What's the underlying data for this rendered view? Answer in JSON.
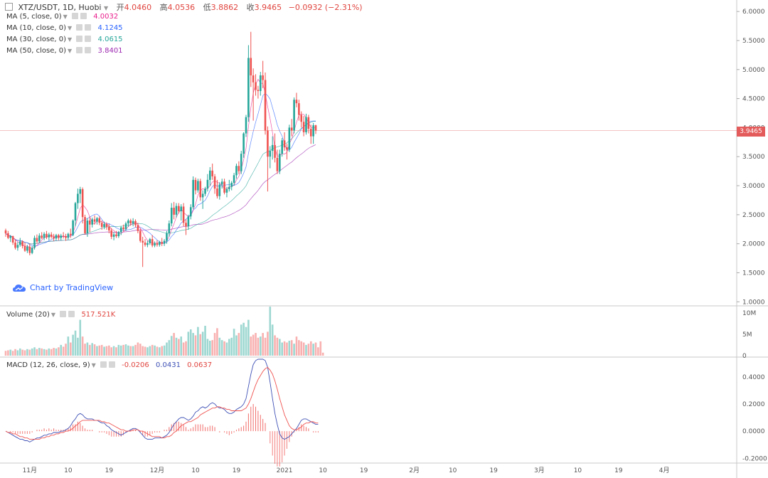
{
  "header": {
    "symbol": "XTZ/USDT, 1D, Huobi",
    "open_label": "开",
    "open": "4.0460",
    "high_label": "高",
    "high": "4.0536",
    "low_label": "低",
    "low": "3.8862",
    "close_label": "收",
    "close": "3.9465",
    "change": "−0.0932 (−2.31%)"
  },
  "indicators": {
    "ma5": {
      "label": "MA (5, close, 0)",
      "value": "4.0032",
      "color": "#e91e8c"
    },
    "ma10": {
      "label": "MA (10, close, 0)",
      "value": "4.1245",
      "color": "#2962ff"
    },
    "ma30": {
      "label": "MA (30, close, 0)",
      "value": "4.0615",
      "color": "#26a69a"
    },
    "ma50": {
      "label": "MA (50, close, 0)",
      "value": "3.8401",
      "color": "#9c27b0"
    },
    "volume": {
      "label": "Volume (20)",
      "value": "517.521K"
    },
    "macd": {
      "label": "MACD (12, 26, close, 9)",
      "hist": "-0.0206",
      "macd": "0.0431",
      "signal": "0.0637"
    }
  },
  "branding": {
    "label": "Chart by TradingView"
  },
  "current_price_tag": "3.9465",
  "colors": {
    "up": "#26a69a",
    "down": "#ef5350",
    "macd_line": "#3f51b5",
    "signal_line": "#ef5350"
  },
  "chart_data": {
    "type": "candlestick",
    "title": "XTZ/USDT, 1D, Huobi",
    "price_axis": {
      "ticks": [
        "6.0000",
        "5.5000",
        "5.0000",
        "4.5000",
        "4.0000",
        "3.5000",
        "3.0000",
        "2.5000",
        "2.0000",
        "1.5000",
        "1.0000"
      ],
      "range": [
        0.93,
        6.1
      ]
    },
    "volume_axis": {
      "ticks": [
        "10M",
        "5M",
        "0"
      ],
      "range": [
        0,
        11000000
      ]
    },
    "macd_axis": {
      "ticks": [
        "0.4000",
        "0.2000",
        "0.0000",
        "-0.2000"
      ],
      "range": [
        -0.23,
        0.53
      ]
    },
    "x_axis": {
      "ticks": [
        "11月",
        "10",
        "19",
        "12月",
        "10",
        "19",
        "2021",
        "10",
        "19",
        "2月",
        "10",
        "19",
        "3月",
        "10",
        "19",
        "4月"
      ],
      "tick_index": [
        10,
        26,
        43,
        63,
        79,
        96,
        116,
        132,
        149,
        170,
        186,
        203,
        222,
        238,
        255,
        274
      ]
    },
    "ohlc": [
      [
        2.23,
        2.26,
        2.12,
        2.18
      ],
      [
        2.18,
        2.22,
        2.08,
        2.1
      ],
      [
        2.1,
        2.15,
        2.03,
        2.13
      ],
      [
        2.13,
        2.14,
        1.98,
        2.02
      ],
      [
        2.02,
        2.07,
        1.9,
        1.93
      ],
      [
        1.93,
        2.03,
        1.88,
        1.98
      ],
      [
        1.98,
        2.1,
        1.95,
        2.04
      ],
      [
        2.04,
        2.06,
        1.92,
        1.96
      ],
      [
        1.96,
        2.02,
        1.86,
        1.88
      ],
      [
        1.88,
        1.98,
        1.84,
        1.95
      ],
      [
        1.95,
        2.0,
        1.8,
        1.84
      ],
      [
        1.84,
        1.96,
        1.82,
        1.93
      ],
      [
        1.93,
        2.14,
        1.9,
        2.1
      ],
      [
        2.1,
        2.16,
        2.0,
        2.04
      ],
      [
        2.04,
        2.18,
        2.01,
        2.14
      ],
      [
        2.14,
        2.2,
        2.08,
        2.1
      ],
      [
        2.1,
        2.2,
        2.06,
        2.17
      ],
      [
        2.17,
        2.22,
        2.08,
        2.11
      ],
      [
        2.11,
        2.19,
        2.06,
        2.16
      ],
      [
        2.16,
        2.2,
        2.09,
        2.12
      ],
      [
        2.12,
        2.17,
        2.05,
        2.09
      ],
      [
        2.09,
        2.17,
        2.06,
        2.15
      ],
      [
        2.15,
        2.17,
        2.06,
        2.1
      ],
      [
        2.1,
        2.17,
        2.06,
        2.14
      ],
      [
        2.14,
        2.2,
        2.09,
        2.13
      ],
      [
        2.13,
        2.17,
        2.05,
        2.1
      ],
      [
        2.1,
        2.19,
        2.07,
        2.17
      ],
      [
        2.17,
        2.26,
        2.1,
        2.15
      ],
      [
        2.15,
        2.42,
        2.13,
        2.4
      ],
      [
        2.4,
        2.72,
        2.3,
        2.7
      ],
      [
        2.7,
        2.95,
        2.6,
        2.86
      ],
      [
        2.86,
        2.98,
        2.7,
        2.94
      ],
      [
        2.94,
        2.97,
        2.35,
        2.46
      ],
      [
        2.46,
        2.5,
        2.16,
        2.18
      ],
      [
        2.18,
        2.44,
        2.12,
        2.4
      ],
      [
        2.4,
        2.47,
        2.2,
        2.33
      ],
      [
        2.33,
        2.45,
        2.28,
        2.42
      ],
      [
        2.42,
        2.49,
        2.33,
        2.38
      ],
      [
        2.38,
        2.46,
        2.33,
        2.44
      ],
      [
        2.44,
        2.47,
        2.32,
        2.36
      ],
      [
        2.36,
        2.4,
        2.24,
        2.29
      ],
      [
        2.29,
        2.38,
        2.25,
        2.34
      ],
      [
        2.34,
        2.37,
        2.24,
        2.29
      ],
      [
        2.29,
        2.34,
        2.18,
        2.23
      ],
      [
        2.23,
        2.27,
        2.08,
        2.12
      ],
      [
        2.12,
        2.2,
        2.06,
        2.16
      ],
      [
        2.16,
        2.22,
        2.1,
        2.13
      ],
      [
        2.13,
        2.22,
        2.1,
        2.2
      ],
      [
        2.2,
        2.3,
        2.15,
        2.28
      ],
      [
        2.28,
        2.33,
        2.21,
        2.25
      ],
      [
        2.25,
        2.38,
        2.22,
        2.35
      ],
      [
        2.35,
        2.43,
        2.29,
        2.4
      ],
      [
        2.4,
        2.43,
        2.31,
        2.35
      ],
      [
        2.35,
        2.44,
        2.3,
        2.39
      ],
      [
        2.39,
        2.42,
        2.28,
        2.32
      ],
      [
        2.32,
        2.36,
        2.18,
        2.22
      ],
      [
        2.22,
        2.26,
        2.02,
        2.05
      ],
      [
        2.05,
        2.12,
        1.6,
        2.02
      ],
      [
        2.02,
        2.08,
        1.95,
        1.98
      ],
      [
        1.98,
        2.05,
        1.94,
        2.01
      ],
      [
        2.01,
        2.1,
        1.98,
        2.08
      ],
      [
        2.08,
        2.15,
        1.94,
        1.97
      ],
      [
        1.97,
        2.04,
        1.94,
        2.01
      ],
      [
        2.01,
        2.06,
        1.95,
        1.98
      ],
      [
        1.98,
        2.05,
        1.95,
        2.03
      ],
      [
        2.03,
        2.1,
        1.96,
        2.0
      ],
      [
        2.0,
        2.08,
        1.96,
        2.05
      ],
      [
        2.05,
        2.22,
        2.0,
        2.18
      ],
      [
        2.18,
        2.4,
        2.12,
        2.35
      ],
      [
        2.35,
        2.7,
        2.3,
        2.62
      ],
      [
        2.62,
        2.72,
        2.42,
        2.5
      ],
      [
        2.5,
        2.7,
        2.45,
        2.65
      ],
      [
        2.65,
        2.7,
        2.52,
        2.56
      ],
      [
        2.56,
        2.68,
        2.4,
        2.64
      ],
      [
        2.64,
        2.7,
        2.3,
        2.36
      ],
      [
        2.36,
        2.42,
        2.15,
        2.3
      ],
      [
        2.3,
        2.5,
        2.24,
        2.47
      ],
      [
        2.47,
        2.68,
        2.42,
        2.63
      ],
      [
        2.63,
        3.16,
        2.6,
        3.1
      ],
      [
        3.1,
        3.14,
        2.85,
        2.92
      ],
      [
        2.92,
        3.12,
        2.88,
        3.08
      ],
      [
        3.08,
        3.12,
        2.74,
        2.8
      ],
      [
        2.8,
        2.92,
        2.6,
        2.86
      ],
      [
        2.86,
        2.98,
        2.82,
        2.95
      ],
      [
        2.95,
        3.2,
        2.9,
        3.1
      ],
      [
        3.1,
        3.32,
        3.0,
        3.26
      ],
      [
        3.26,
        3.38,
        3.1,
        3.16
      ],
      [
        3.16,
        3.2,
        2.86,
        2.95
      ],
      [
        2.95,
        3.1,
        2.78,
        2.82
      ],
      [
        2.82,
        3.06,
        2.76,
        3.02
      ],
      [
        3.02,
        3.12,
        2.95,
        3.07
      ],
      [
        3.07,
        3.12,
        2.85,
        2.88
      ],
      [
        2.88,
        2.98,
        2.8,
        2.94
      ],
      [
        2.94,
        3.1,
        2.9,
        2.98
      ],
      [
        2.98,
        3.08,
        2.92,
        3.05
      ],
      [
        3.05,
        3.22,
        3.0,
        3.18
      ],
      [
        3.18,
        3.38,
        3.12,
        3.34
      ],
      [
        3.34,
        3.42,
        3.2,
        3.25
      ],
      [
        3.25,
        3.6,
        3.2,
        3.55
      ],
      [
        3.55,
        3.92,
        3.48,
        3.9
      ],
      [
        3.9,
        4.22,
        3.84,
        4.18
      ],
      [
        4.18,
        5.42,
        4.1,
        5.2
      ],
      [
        5.2,
        5.65,
        4.7,
        4.9
      ],
      [
        4.9,
        5.02,
        4.12,
        4.78
      ],
      [
        4.78,
        4.92,
        4.55,
        4.65
      ],
      [
        4.65,
        4.72,
        4.5,
        4.63
      ],
      [
        4.63,
        4.96,
        4.55,
        4.9
      ],
      [
        4.9,
        5.15,
        4.68,
        4.82
      ],
      [
        4.82,
        4.95,
        3.88,
        3.95
      ],
      [
        3.95,
        4.02,
        2.9,
        3.5
      ],
      [
        3.5,
        3.68,
        3.3,
        3.6
      ],
      [
        3.6,
        3.85,
        3.45,
        3.7
      ],
      [
        3.7,
        3.9,
        3.4,
        3.48
      ],
      [
        3.48,
        3.62,
        3.2,
        3.25
      ],
      [
        3.25,
        3.62,
        3.2,
        3.55
      ],
      [
        3.55,
        3.82,
        3.5,
        3.78
      ],
      [
        3.78,
        3.92,
        3.6,
        3.66
      ],
      [
        3.66,
        3.72,
        3.45,
        3.62
      ],
      [
        3.62,
        4.05,
        3.58,
        4.0
      ],
      [
        4.0,
        4.15,
        3.85,
        3.95
      ],
      [
        3.95,
        4.52,
        3.9,
        4.48
      ],
      [
        4.48,
        4.6,
        4.35,
        4.42
      ],
      [
        4.42,
        4.48,
        4.12,
        4.22
      ],
      [
        4.22,
        4.28,
        4.0,
        4.1
      ],
      [
        4.1,
        4.2,
        3.85,
        3.92
      ],
      [
        3.92,
        4.24,
        3.88,
        4.18
      ],
      [
        4.18,
        4.22,
        3.9,
        3.98
      ],
      [
        3.98,
        4.05,
        3.72,
        3.85
      ],
      [
        3.85,
        4.08,
        3.72,
        4.04
      ],
      [
        4.04,
        4.05,
        3.89,
        3.95
      ]
    ],
    "volume": [
      8,
      9,
      10,
      8,
      11,
      9,
      12,
      10,
      9,
      11,
      10,
      12,
      14,
      11,
      13,
      12,
      11,
      10,
      12,
      11,
      13,
      12,
      14,
      18,
      15,
      20,
      32,
      22,
      35,
      42,
      30,
      60,
      32,
      20,
      22,
      18,
      21,
      19,
      16,
      17,
      18,
      15,
      16,
      17,
      14,
      16,
      14,
      18,
      17,
      18,
      19,
      17,
      16,
      16,
      18,
      22,
      20,
      16,
      15,
      14,
      16,
      18,
      17,
      15,
      14,
      16,
      17,
      22,
      26,
      33,
      38,
      30,
      28,
      32,
      22,
      24,
      40,
      44,
      38,
      34,
      48,
      36,
      40,
      50,
      28,
      25,
      26,
      38,
      46,
      30,
      26,
      24,
      22,
      28,
      30,
      45,
      34,
      38,
      52,
      55,
      48,
      60,
      32,
      35,
      38,
      30,
      32,
      38,
      30,
      40,
      82,
      52,
      34,
      30,
      28,
      22,
      24,
      22,
      25,
      26,
      20,
      32,
      26,
      24,
      22,
      18,
      20,
      24,
      20,
      22,
      14,
      24,
      5
    ],
    "macd": [
      0.0,
      -0.01,
      -0.02,
      -0.03,
      -0.04,
      -0.05,
      -0.06,
      -0.06,
      -0.07,
      -0.07,
      -0.08,
      -0.07,
      -0.06,
      -0.05,
      -0.05,
      -0.04,
      -0.03,
      -0.03,
      -0.02,
      -0.02,
      -0.01,
      -0.01,
      -0.01,
      0.0,
      0.0,
      0.01,
      0.02,
      0.04,
      0.07,
      0.09,
      0.12,
      0.13,
      0.12,
      0.1,
      0.09,
      0.09,
      0.09,
      0.08,
      0.08,
      0.07,
      0.06,
      0.06,
      0.04,
      0.03,
      0.01,
      0.0,
      -0.01,
      -0.02,
      -0.03,
      -0.02,
      -0.01,
      0.0,
      0.01,
      0.02,
      0.02,
      0.01,
      -0.01,
      -0.03,
      -0.05,
      -0.06,
      -0.06,
      -0.06,
      -0.05,
      -0.05,
      -0.05,
      -0.05,
      -0.04,
      -0.03,
      -0.01,
      0.02,
      0.05,
      0.07,
      0.09,
      0.1,
      0.1,
      0.09,
      0.08,
      0.09,
      0.11,
      0.14,
      0.15,
      0.17,
      0.18,
      0.17,
      0.18,
      0.2,
      0.21,
      0.2,
      0.18,
      0.17,
      0.17,
      0.16,
      0.14,
      0.13,
      0.13,
      0.14,
      0.16,
      0.17,
      0.18,
      0.2,
      0.24,
      0.33,
      0.42,
      0.49,
      0.52,
      0.53,
      0.53,
      0.53,
      0.52,
      0.47,
      0.36,
      0.24,
      0.13,
      0.05,
      -0.02,
      -0.05,
      -0.06,
      -0.05,
      -0.04,
      -0.02,
      0.0,
      0.02,
      0.05,
      0.08,
      0.09,
      0.09,
      0.08,
      0.07,
      0.06,
      0.05,
      0.05
    ],
    "signal": [
      0.0,
      -0.01,
      -0.01,
      -0.02,
      -0.02,
      -0.03,
      -0.04,
      -0.04,
      -0.05,
      -0.05,
      -0.06,
      -0.06,
      -0.06,
      -0.06,
      -0.06,
      -0.05,
      -0.05,
      -0.04,
      -0.04,
      -0.03,
      -0.03,
      -0.02,
      -0.02,
      -0.01,
      -0.01,
      0.0,
      0.0,
      0.01,
      0.02,
      0.04,
      0.05,
      0.07,
      0.08,
      0.08,
      0.08,
      0.08,
      0.08,
      0.08,
      0.08,
      0.08,
      0.07,
      0.07,
      0.06,
      0.06,
      0.05,
      0.04,
      0.03,
      0.02,
      0.01,
      0.01,
      0.0,
      0.0,
      0.0,
      0.01,
      0.01,
      0.01,
      0.0,
      0.0,
      -0.01,
      -0.02,
      -0.03,
      -0.04,
      -0.04,
      -0.04,
      -0.04,
      -0.05,
      -0.05,
      -0.04,
      -0.04,
      -0.03,
      -0.01,
      0.0,
      0.02,
      0.04,
      0.05,
      0.06,
      0.07,
      0.07,
      0.08,
      0.09,
      0.1,
      0.12,
      0.13,
      0.14,
      0.15,
      0.16,
      0.17,
      0.17,
      0.18,
      0.18,
      0.17,
      0.17,
      0.16,
      0.16,
      0.15,
      0.15,
      0.15,
      0.15,
      0.15,
      0.16,
      0.17,
      0.2,
      0.24,
      0.29,
      0.34,
      0.38,
      0.41,
      0.44,
      0.46,
      0.47,
      0.45,
      0.42,
      0.37,
      0.31,
      0.24,
      0.18,
      0.12,
      0.08,
      0.04,
      0.02,
      0.01,
      0.01,
      0.02,
      0.03,
      0.05,
      0.06,
      0.06,
      0.07,
      0.07,
      0.06,
      0.06
    ]
  }
}
